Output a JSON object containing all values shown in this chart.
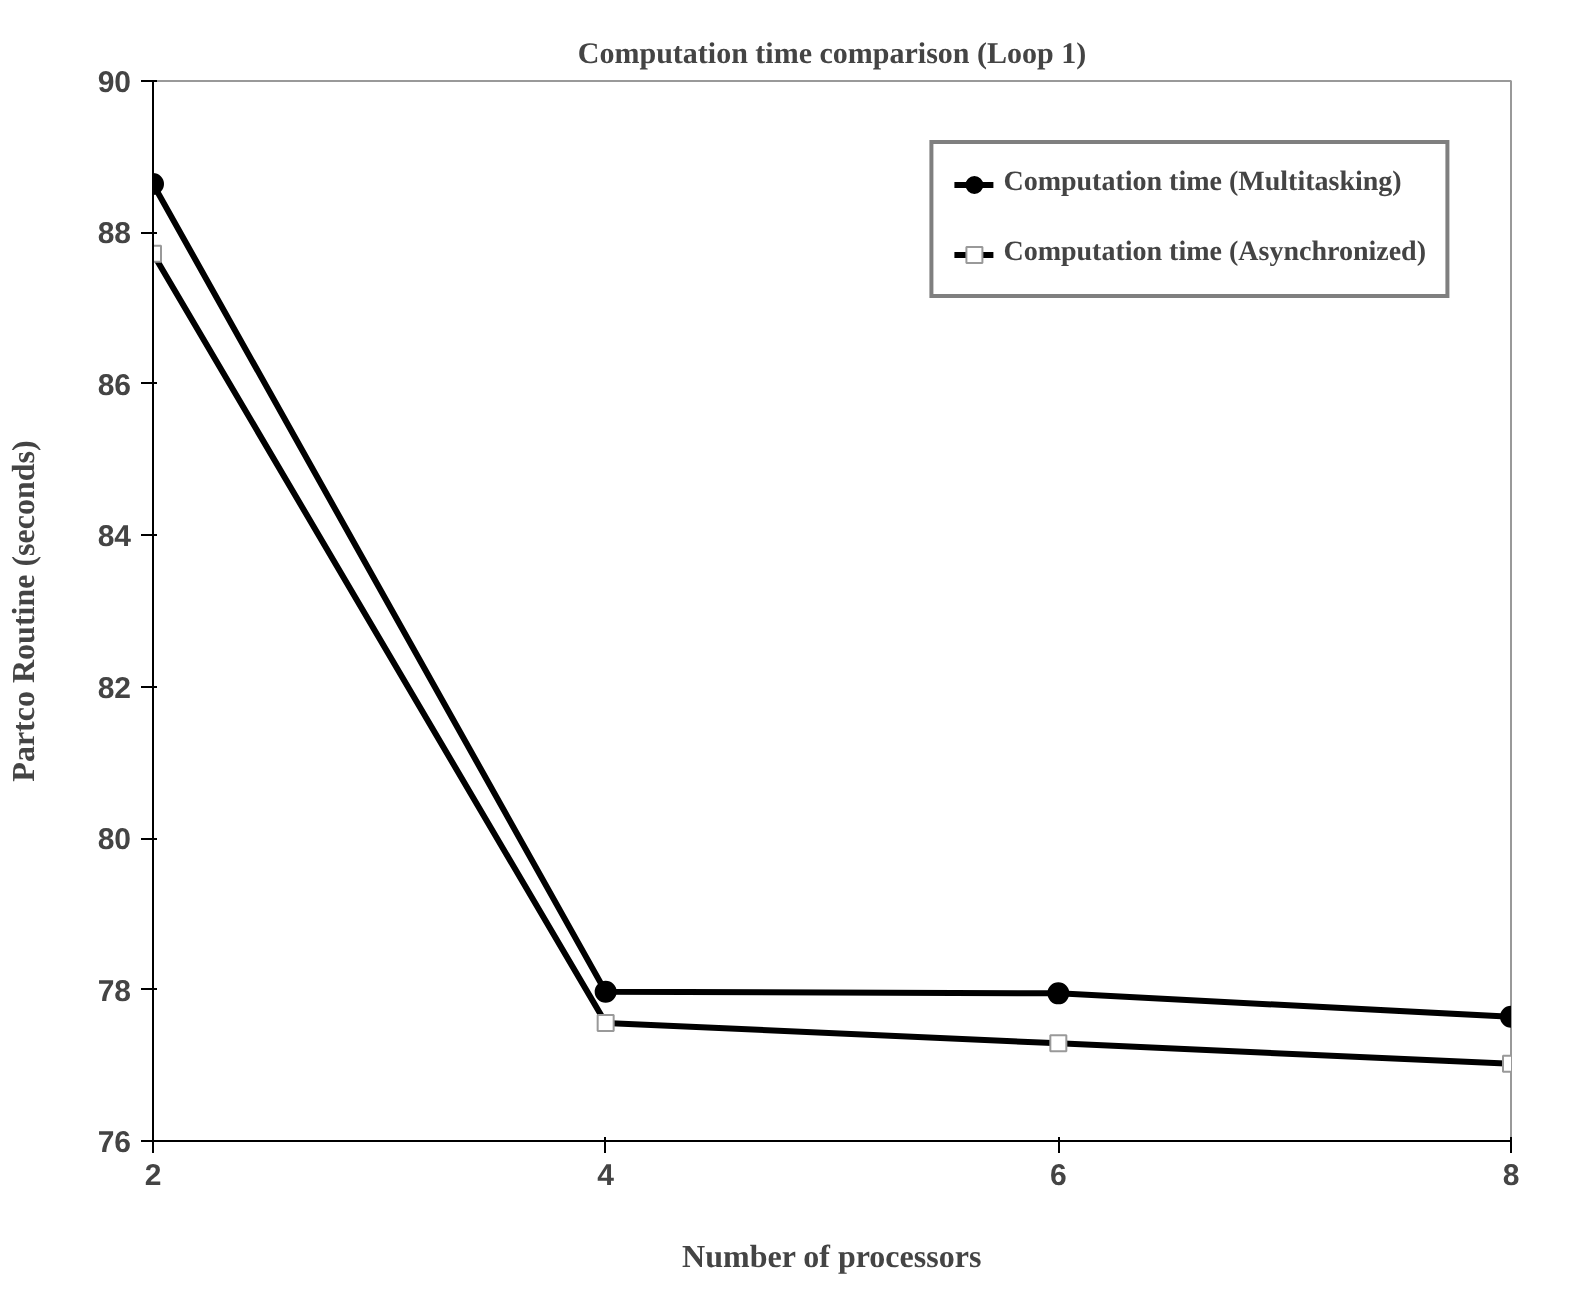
{
  "chart_data": {
    "type": "line",
    "title": "Computation time comparison (Loop 1)",
    "xlabel": "Number of processors",
    "ylabel": "Partco Routine (seconds)",
    "x": [
      2,
      4,
      6,
      8
    ],
    "xlim": [
      2,
      8
    ],
    "xticks": [
      2,
      4,
      6,
      8
    ],
    "ylim": [
      76,
      90
    ],
    "yticks": [
      76,
      78,
      80,
      82,
      84,
      86,
      88,
      90
    ],
    "series": [
      {
        "name": "Computation time (Multitasking)",
        "color": "#000000",
        "marker": "circle",
        "values": [
          88.64,
          77.97,
          77.95,
          77.64
        ]
      },
      {
        "name": "Computation time (Asynchronized)",
        "color": "#000000",
        "marker": "square",
        "values": [
          87.72,
          77.56,
          77.29,
          77.02
        ]
      }
    ],
    "legend": "top right",
    "grid": false,
    "line_style": "solid"
  }
}
